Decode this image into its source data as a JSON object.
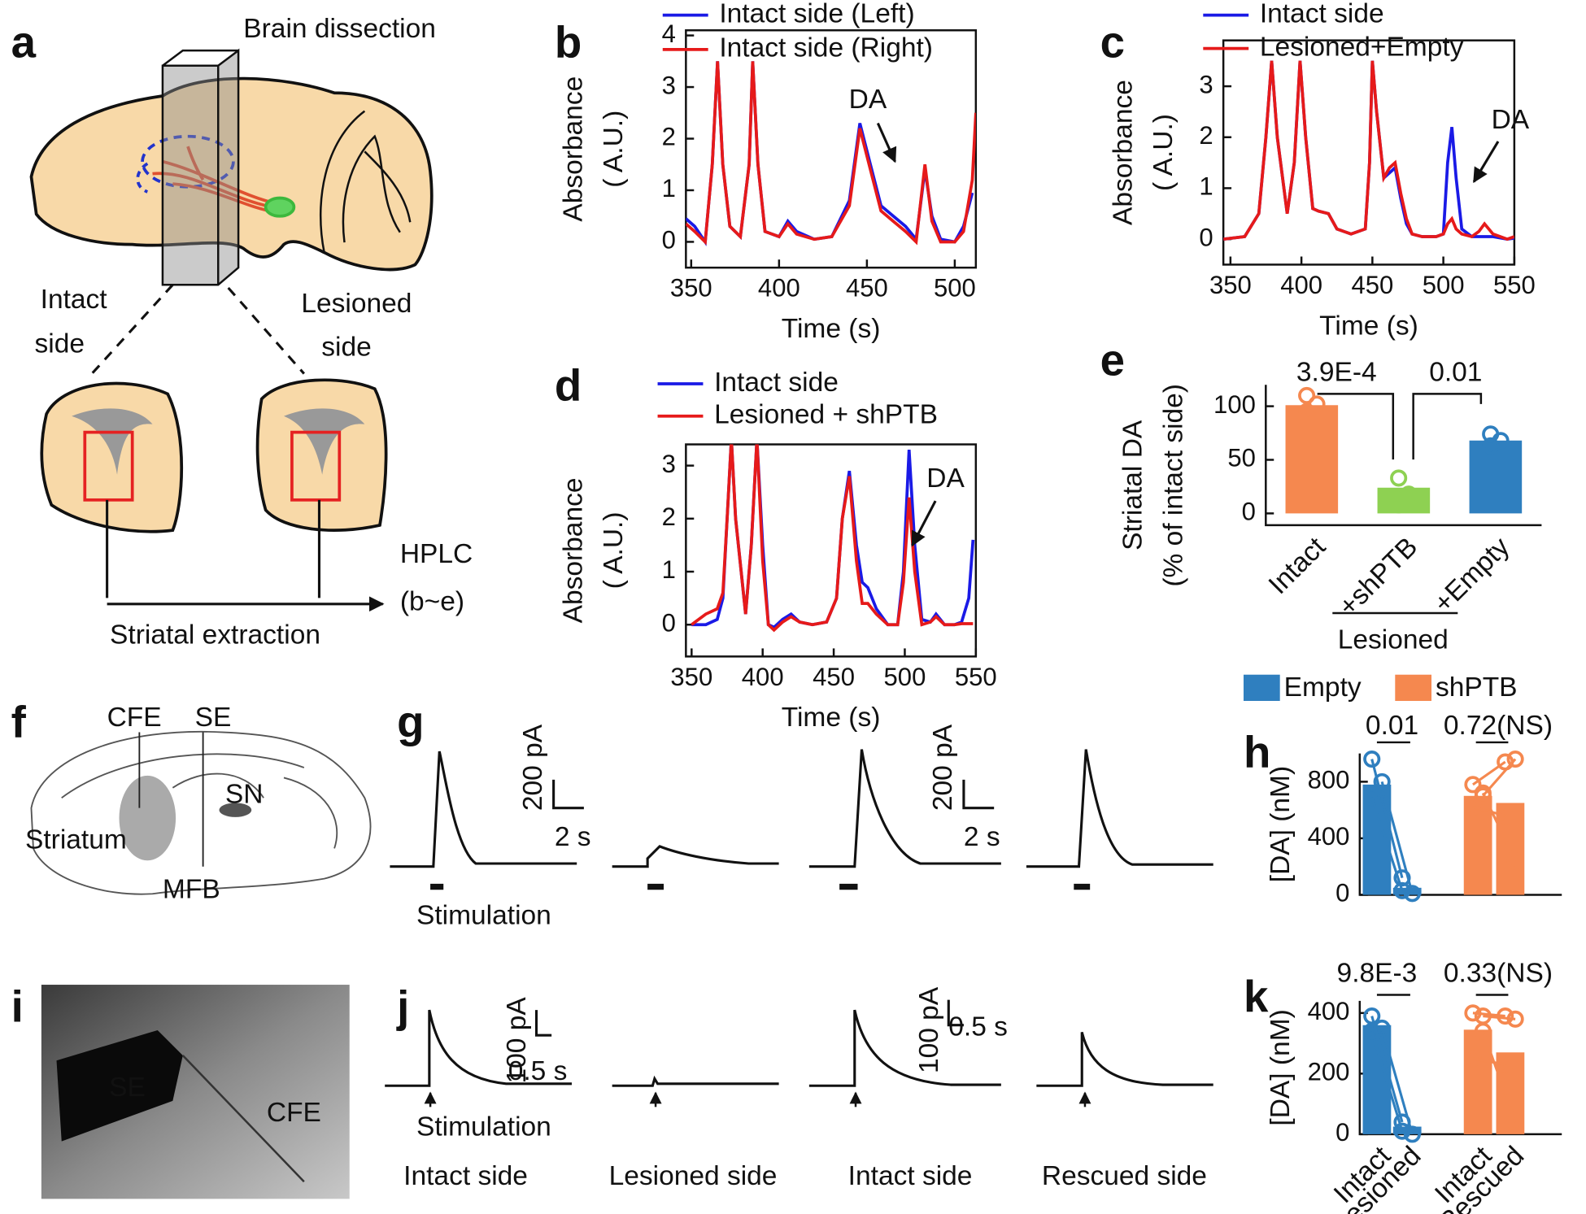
{
  "panel_labels": [
    "a",
    "b",
    "c",
    "d",
    "e",
    "f",
    "g",
    "h",
    "i",
    "j",
    "k"
  ],
  "panel_a": {
    "title": "Brain dissection",
    "left_label": [
      "Intact",
      "side"
    ],
    "right_label": [
      "Lesioned",
      "side"
    ],
    "method": "HPLC",
    "method_panels": "(b~e)",
    "extraction": "Striatal extraction"
  },
  "panel_f": {
    "labels": [
      "CFE",
      "SE",
      "Striatum",
      "SN",
      "MFB"
    ]
  },
  "panel_g": {
    "scale_bars": [
      [
        "200 pA",
        "2 s"
      ],
      [
        "200 pA",
        "2 s"
      ]
    ],
    "stimulation": "Stimulation"
  },
  "panel_i": {
    "labels": [
      "SE",
      "CFE"
    ]
  },
  "panel_j": {
    "scale_bars": [
      [
        "100 pA",
        "0.5 s"
      ],
      [
        "100 pA",
        "0.5 s"
      ]
    ],
    "stimulation": "Stimulation"
  },
  "conditions": [
    "Intact side",
    "Lesioned side",
    "Intact side",
    "Rescued side"
  ],
  "chart_data": [
    {
      "type": "line",
      "xlabel": "Time (s)",
      "ylabel": [
        "Absorbance",
        "( A.U.)"
      ],
      "annotation": "DA",
      "xlim": [
        347,
        512
      ],
      "ylim": [
        -0.5,
        4.1
      ],
      "xticks": [
        350,
        400,
        450,
        500
      ],
      "yticks": [
        0,
        1,
        2,
        3,
        4
      ],
      "x": [
        347,
        352,
        358,
        362,
        365,
        368,
        372,
        378,
        383,
        385,
        388,
        392,
        400,
        405,
        410,
        420,
        430,
        440,
        446,
        452,
        458,
        465,
        472,
        478,
        483,
        487,
        492,
        500,
        505,
        510,
        512
      ],
      "series": [
        {
          "name": "Intact side (Left)",
          "color": "#1a1ae6",
          "values": [
            0.45,
            0.3,
            0.0,
            1.5,
            3.5,
            1.5,
            0.3,
            0.1,
            1.5,
            3.5,
            1.5,
            0.2,
            0.1,
            0.4,
            0.2,
            0.05,
            0.1,
            0.8,
            2.3,
            1.5,
            0.7,
            0.5,
            0.3,
            0.05,
            1.4,
            0.5,
            0.05,
            0.0,
            0.3,
            0.95,
            null
          ]
        },
        {
          "name": "Intact side (Right)",
          "color": "#e61a1a",
          "values": [
            0.35,
            0.2,
            0.0,
            1.5,
            3.5,
            1.5,
            0.3,
            0.1,
            1.5,
            3.5,
            1.5,
            0.2,
            0.1,
            0.35,
            0.15,
            0.05,
            0.1,
            0.7,
            2.2,
            1.4,
            0.6,
            0.4,
            0.2,
            0.0,
            1.5,
            0.4,
            0.0,
            0.0,
            0.2,
            1.2,
            2.5
          ]
        }
      ]
    },
    {
      "type": "line",
      "xlabel": "Time (s)",
      "ylabel": [
        "Absorbance",
        "( A.U.)"
      ],
      "annotation": "DA",
      "xlim": [
        345,
        550
      ],
      "ylim": [
        -0.5,
        3.9
      ],
      "xticks": [
        350,
        400,
        450,
        500,
        550
      ],
      "yticks": [
        0,
        1,
        2,
        3
      ],
      "x": [
        345,
        360,
        370,
        375,
        379,
        383,
        390,
        395,
        399,
        403,
        408,
        412,
        419,
        425,
        435,
        445,
        448,
        450,
        453,
        458,
        462,
        466,
        470,
        474,
        478,
        485,
        495,
        500,
        503,
        506,
        509,
        513,
        520,
        525,
        529,
        535,
        545,
        550
      ],
      "series": [
        {
          "name": "Intact side",
          "color": "#1a1ae6",
          "values": [
            0,
            0.05,
            0.5,
            2,
            3.5,
            2,
            0.5,
            1.5,
            3.5,
            2,
            0.6,
            0.55,
            0.5,
            0.2,
            0.1,
            0.2,
            1.5,
            3.5,
            2.5,
            1.2,
            1.3,
            1.4,
            0.8,
            0.3,
            0.1,
            0.05,
            0.05,
            0.1,
            1.5,
            2.2,
            1.2,
            0.2,
            0.05,
            0.05,
            0.05,
            0.05,
            0,
            0.02
          ]
        },
        {
          "name": "Lesioned+Empty",
          "color": "#e61a1a",
          "values": [
            0,
            0.05,
            0.5,
            2,
            3.5,
            2,
            0.5,
            1.5,
            3.5,
            2,
            0.6,
            0.55,
            0.5,
            0.2,
            0.1,
            0.2,
            1.5,
            3.5,
            2.5,
            1.2,
            1.4,
            1.5,
            0.9,
            0.4,
            0.1,
            0.05,
            0.05,
            0.1,
            0.3,
            0.4,
            0.2,
            0.1,
            0.05,
            0.15,
            0.3,
            0.1,
            0,
            0.05
          ]
        }
      ]
    },
    {
      "type": "line",
      "xlabel": "Time (s)",
      "ylabel": [
        "Absorbance",
        "( A.U.)"
      ],
      "annotation": "DA",
      "xlim": [
        346,
        550
      ],
      "ylim": [
        -0.6,
        3.4
      ],
      "xticks": [
        350,
        400,
        450,
        500,
        550
      ],
      "yticks": [
        0,
        1,
        2,
        3
      ],
      "x": [
        350,
        360,
        368,
        372,
        375,
        378,
        381,
        388,
        392,
        396,
        400,
        404,
        408,
        414,
        420,
        426,
        435,
        445,
        452,
        456,
        461,
        466,
        470,
        474,
        480,
        488,
        495,
        499,
        503,
        507,
        512,
        518,
        522,
        528,
        535,
        540,
        545,
        548
      ],
      "series": [
        {
          "name": "Intact side",
          "color": "#1a1ae6",
          "values": [
            0,
            0,
            0.1,
            0.5,
            2,
            3.5,
            2,
            0.2,
            1.5,
            3.5,
            1.5,
            0,
            -0.05,
            0.1,
            0.2,
            0.05,
            0,
            0.05,
            0.5,
            2,
            2.9,
            1.5,
            0.8,
            0.7,
            0.3,
            0,
            0,
            1,
            3.3,
            1.5,
            0.1,
            0.05,
            0.2,
            0,
            0,
            0.05,
            0.5,
            1.6
          ]
        },
        {
          "name": "Lesioned + shPTB",
          "color": "#e61a1a",
          "values": [
            0,
            0.2,
            0.3,
            0.6,
            2,
            3.5,
            2,
            0.2,
            1.5,
            3.5,
            1.2,
            0,
            -0.1,
            0.05,
            0.15,
            0.05,
            0,
            0.05,
            0.5,
            2,
            2.8,
            1.2,
            0.4,
            0.4,
            0.2,
            0,
            0,
            0.8,
            2.4,
            1,
            0,
            0.05,
            0.15,
            0,
            0,
            0.02,
            0.02,
            0.02
          ]
        }
      ]
    },
    {
      "type": "bar",
      "ylabel": [
        "Striatal DA",
        "(% of intact side)"
      ],
      "xlabel": "Lesioned",
      "annotations": [
        "3.9E-4",
        "0.01"
      ],
      "categories": [
        "Intact",
        "+shPTB",
        "+Empty"
      ],
      "values": [
        101,
        24,
        68
      ],
      "colors": [
        "#f5884f",
        "#8ed152",
        "#2f7fbf"
      ],
      "points": [
        [
          95,
          102,
          110
        ],
        [
          8,
          18,
          33
        ],
        [
          63,
          68,
          74
        ]
      ],
      "ylim": [
        -11,
        120
      ],
      "yticks": [
        0,
        50,
        100
      ]
    },
    {
      "type": "bar",
      "ylabel": "[DA] (nM)",
      "annotations": [
        "0.01",
        "0.72(NS)"
      ],
      "categories": [
        null,
        null,
        null,
        null
      ],
      "series": [
        {
          "name": "Empty",
          "color": "#2f7fbf",
          "values": [
            780,
            50,
            null,
            null
          ],
          "points": [
            [
              960,
              800,
              690
            ],
            [
              120,
              10,
              30
            ],
            null,
            null
          ]
        },
        {
          "name": "shPTB",
          "color": "#f5884f",
          "values": [
            null,
            null,
            700,
            650
          ],
          "points": [
            null,
            null,
            [
              780,
              700,
              620,
              720
            ],
            [
              940,
              960,
              560,
              240
            ]
          ]
        }
      ],
      "ylim": [
        0,
        1000
      ],
      "yticks": [
        0,
        400,
        800
      ]
    },
    {
      "type": "bar",
      "ylabel": "[DA] (nM)",
      "annotations": [
        "9.8E-3",
        "0.33(NS)"
      ],
      "categories": [
        "Intact",
        "Lesioned",
        "Intact",
        "Rescued"
      ],
      "series": [
        {
          "color": "#2f7fbf",
          "values": [
            360,
            25,
            null,
            null
          ],
          "points": [
            [
              390,
              350,
              340
            ],
            [
              40,
              0,
              10
            ],
            null,
            null
          ]
        },
        {
          "color": "#f5884f",
          "values": [
            null,
            null,
            345,
            270
          ],
          "points": [
            null,
            null,
            [
              400,
              390,
              250,
              340
            ],
            [
              390,
              380,
              230,
              40
            ]
          ]
        }
      ],
      "ylim": [
        0,
        440
      ],
      "yticks": [
        0,
        200,
        400
      ]
    }
  ]
}
